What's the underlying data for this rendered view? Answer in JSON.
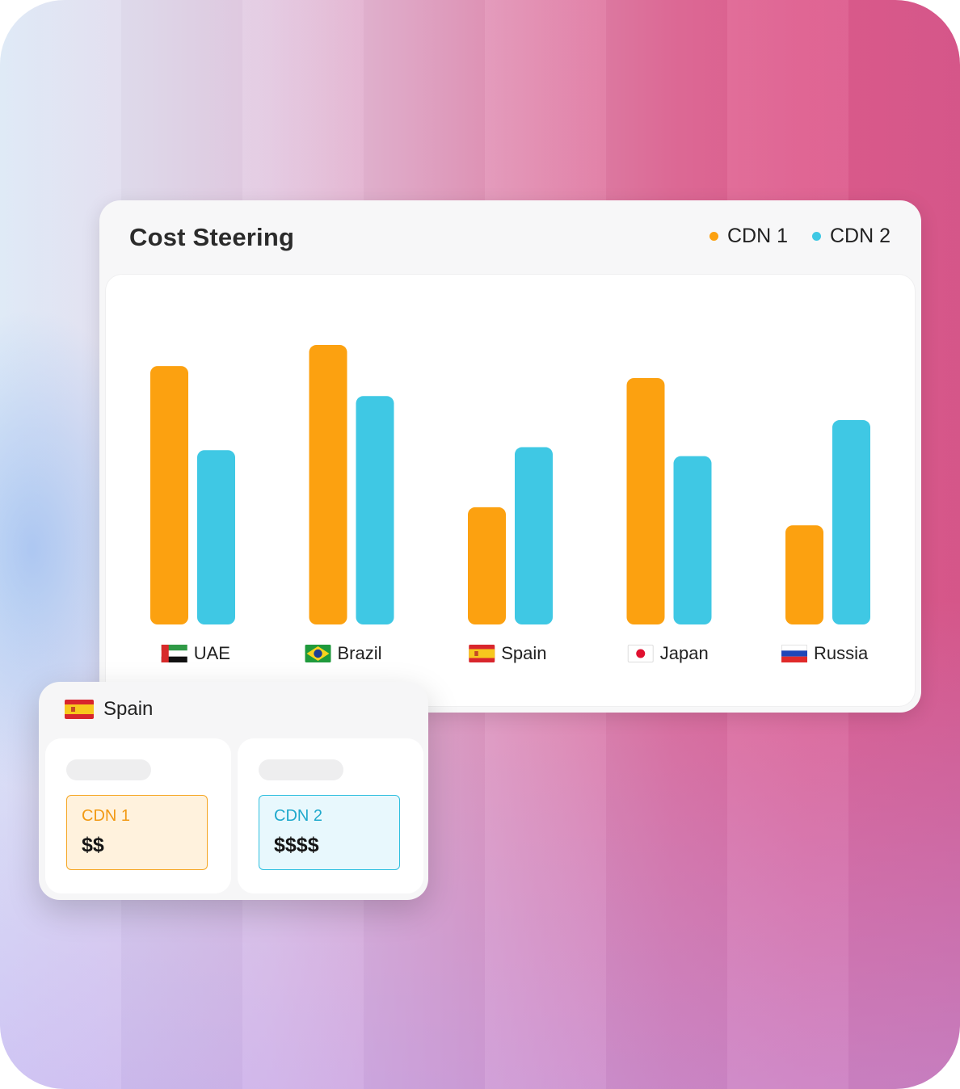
{
  "chart_data": {
    "type": "bar",
    "title": "Cost Steering",
    "categories": [
      "UAE",
      "Brazil",
      "Spain",
      "Japan",
      "Russia"
    ],
    "series": [
      {
        "name": "CDN 1",
        "color": "#fca110",
        "values": [
          86,
          93,
          39,
          82,
          33
        ]
      },
      {
        "name": "CDN 2",
        "color": "#3fc8e4",
        "values": [
          58,
          76,
          59,
          56,
          68
        ]
      }
    ],
    "ylim": [
      0,
      100
    ],
    "grid": false,
    "legend": "top-right",
    "flags": [
      "flag-uae-icon",
      "flag-brazil-icon",
      "flag-spain-icon",
      "flag-japan-icon",
      "flag-russia-icon"
    ]
  },
  "detail": {
    "country": "Spain",
    "flag": "flag-spain-icon",
    "cdn1": {
      "label": "CDN 1",
      "price": "$$"
    },
    "cdn2": {
      "label": "CDN 2",
      "price": "$$$$"
    }
  },
  "colors": {
    "cdn1": "#fca110",
    "cdn2": "#3fc8e4"
  }
}
